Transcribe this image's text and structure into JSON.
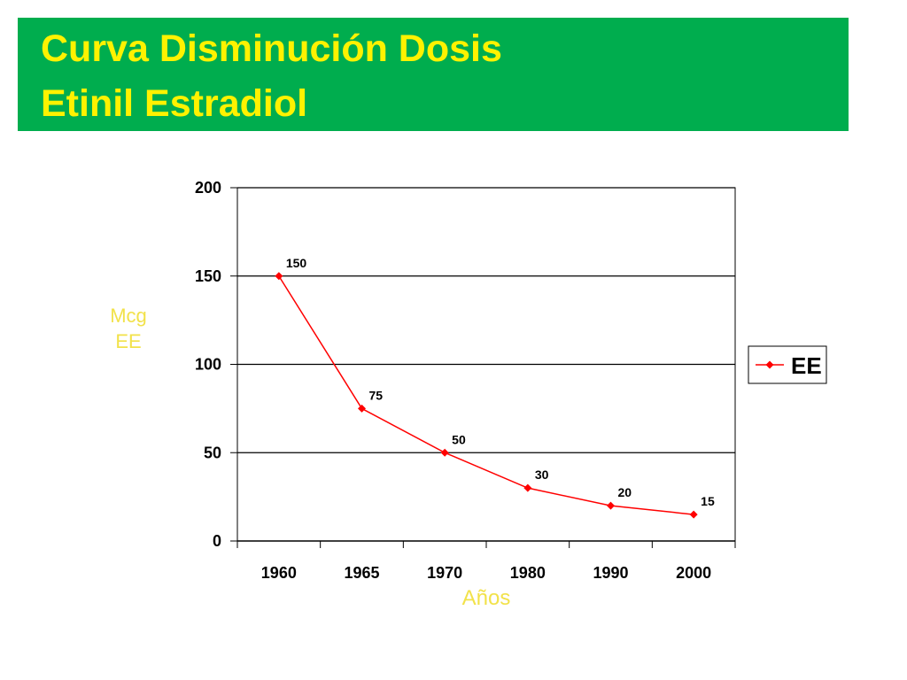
{
  "title": {
    "line1": "Curva Disminución Dosis",
    "line2": "Etinil Estradiol"
  },
  "chart_data": {
    "type": "line",
    "categories": [
      "1960",
      "1965",
      "1970",
      "1980",
      "1990",
      "2000"
    ],
    "series": [
      {
        "name": "EE",
        "values": [
          150,
          75,
          50,
          30,
          20,
          15
        ]
      }
    ],
    "ylabel": [
      "Mcg",
      "EE"
    ],
    "xlabel": "Años",
    "ylim": [
      0,
      200
    ],
    "yticks": [
      0,
      50,
      100,
      150,
      200
    ],
    "grid": true,
    "legend_position": "right",
    "data_labels": true
  },
  "colors": {
    "banner": "#00ad4e",
    "title_text": "#fff200",
    "series_line": "#ff0000",
    "axis_title": "#f2e24a"
  }
}
